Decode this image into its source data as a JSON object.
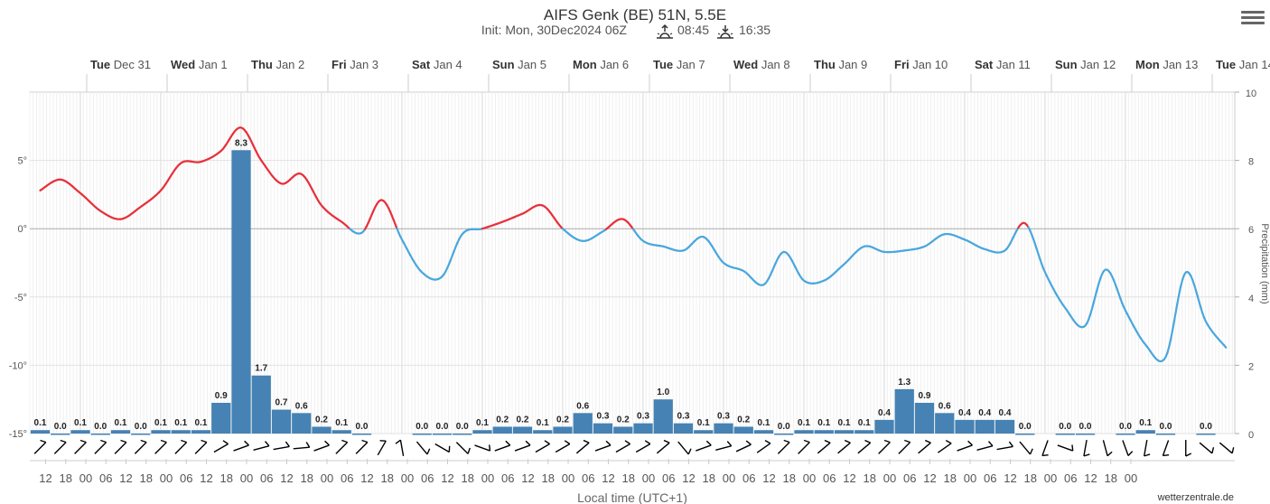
{
  "header": {
    "title": "AIFS Genk (BE) 51N, 5.5E",
    "init_text": "Init: Mon, 30Dec2024 06Z",
    "sunrise": "08:45",
    "sunset": "16:35"
  },
  "menu": {
    "icon": "hamburger-menu-icon"
  },
  "credit": "wetterzentrale.de",
  "chart_data": {
    "type": "line+bar",
    "xlabel": "Local time (UTC+1)",
    "ylabel_right": "Precipitation (mm)",
    "time_step_hours": 6,
    "start": "Tue Dec 31 12:00",
    "day_labels": [
      {
        "dow": "Tue",
        "date": "Dec 31"
      },
      {
        "dow": "Wed",
        "date": "Jan 1"
      },
      {
        "dow": "Thu",
        "date": "Jan 2"
      },
      {
        "dow": "Fri",
        "date": "Jan 3"
      },
      {
        "dow": "Sat",
        "date": "Jan 4"
      },
      {
        "dow": "Sun",
        "date": "Jan 5"
      },
      {
        "dow": "Mon",
        "date": "Jan 6"
      },
      {
        "dow": "Tue",
        "date": "Jan 7"
      },
      {
        "dow": "Wed",
        "date": "Jan 8"
      },
      {
        "dow": "Thu",
        "date": "Jan 9"
      },
      {
        "dow": "Fri",
        "date": "Jan 10"
      },
      {
        "dow": "Sat",
        "date": "Jan 11"
      },
      {
        "dow": "Sun",
        "date": "Jan 12"
      },
      {
        "dow": "Mon",
        "date": "Jan 13"
      },
      {
        "dow": "Tue",
        "date": "Jan 14"
      }
    ],
    "hour_ticks": [
      "12",
      "18",
      "00",
      "06",
      "12",
      "18",
      "00",
      "06",
      "12",
      "18",
      "00",
      "06",
      "12",
      "18",
      "00",
      "06",
      "12",
      "18",
      "00",
      "06",
      "12",
      "18",
      "00",
      "06",
      "12",
      "18",
      "00",
      "06",
      "12",
      "18",
      "00",
      "06",
      "12",
      "18",
      "00",
      "06",
      "12",
      "18",
      "00",
      "06",
      "12",
      "18",
      "00",
      "06",
      "12",
      "18",
      "00",
      "06",
      "12",
      "18",
      "00",
      "06",
      "12",
      "18",
      "00"
    ],
    "temperature": {
      "unit": "°",
      "ylim": [
        -15,
        10
      ],
      "ticks": [
        5,
        0,
        -5,
        -10,
        -15
      ],
      "tick_labels": [
        "5°",
        "0°",
        "-5°",
        "-10°",
        "-15°"
      ],
      "warm_color": "#e8303a",
      "cold_color": "#4aa7dd",
      "values": [
        2.8,
        3.6,
        2.6,
        1.3,
        0.7,
        1.6,
        2.8,
        4.8,
        4.9,
        5.7,
        7.4,
        5.0,
        3.3,
        4.0,
        1.7,
        0.5,
        -0.3,
        2.1,
        -0.8,
        -3.2,
        -3.5,
        -0.4,
        0.0,
        0.5,
        1.1,
        1.7,
        0.0,
        -0.9,
        -0.2,
        0.7,
        -0.9,
        -1.3,
        -1.6,
        -0.6,
        -2.5,
        -3.1,
        -4.1,
        -1.7,
        -3.8,
        -3.8,
        -2.6,
        -1.3,
        -1.7,
        -1.6,
        -1.3,
        -0.4,
        -0.8,
        -1.5,
        -1.6,
        0.4,
        -3.2,
        -5.8,
        -7.1,
        -3.0,
        -6.0,
        -8.5,
        -9.4,
        -3.2,
        -6.8,
        -8.7
      ]
    },
    "precipitation": {
      "unit": "mm",
      "ylim": [
        0,
        10
      ],
      "ticks": [
        0,
        2,
        4,
        6,
        8,
        10
      ],
      "color": "#4682b4",
      "values": [
        0.1,
        0.0,
        0.1,
        0.0,
        0.1,
        0.0,
        0.1,
        0.1,
        0.1,
        0.9,
        8.3,
        1.7,
        0.7,
        0.6,
        0.2,
        0.1,
        0.0,
        null,
        null,
        0.0,
        0.0,
        0.0,
        0.1,
        0.2,
        0.2,
        0.1,
        0.2,
        0.6,
        0.3,
        0.2,
        0.3,
        1.0,
        0.3,
        0.1,
        0.3,
        0.2,
        0.1,
        0.0,
        0.1,
        0.1,
        0.1,
        0.1,
        0.4,
        1.3,
        0.9,
        0.6,
        0.4,
        0.4,
        0.4,
        0.0,
        null,
        0.0,
        0.0,
        null,
        0.0,
        0.1,
        0.0,
        null,
        0.0,
        null
      ],
      "labels": [
        "0.1",
        "0.0",
        "0.1",
        "0.0",
        "0.1",
        "0.0",
        "0.1",
        "0.1",
        "0.1",
        "0.9",
        "8.3",
        "1.7",
        "0.7",
        "0.6",
        "0.2",
        "0.1",
        "0.0",
        "",
        "",
        "0.0",
        "0.0",
        "0.0",
        "0.1",
        "0.2",
        "0.2",
        "0.1",
        "0.2",
        "0.6",
        "0.3",
        "0.2",
        "0.3",
        "1.0",
        "0.3",
        "0.1",
        "0.3",
        "0.2",
        "0.1",
        "0.0",
        "0.1",
        "0.1",
        "0.1",
        "0.1",
        "0.4",
        "1.3",
        "0.9",
        "0.6",
        "0.4",
        "0.4",
        "0.4",
        "0.0",
        "",
        "0.0",
        "0.0",
        "",
        "0.0",
        "0.1",
        "0.0",
        "",
        "0.0",
        ""
      ]
    },
    "wind_direction_deg": [
      225,
      225,
      225,
      225,
      225,
      225,
      225,
      225,
      225,
      240,
      250,
      255,
      260,
      265,
      250,
      225,
      225,
      210,
      170,
      320,
      300,
      315,
      290,
      250,
      250,
      240,
      240,
      230,
      250,
      240,
      240,
      230,
      320,
      250,
      255,
      245,
      235,
      225,
      225,
      230,
      230,
      230,
      225,
      225,
      230,
      235,
      250,
      255,
      260,
      320,
      20,
      290,
      10,
      345,
      340,
      10,
      20,
      0,
      310,
      310
    ]
  }
}
